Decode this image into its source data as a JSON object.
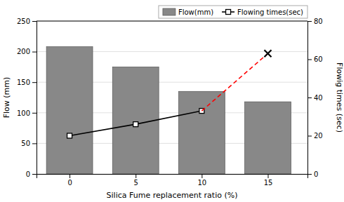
{
  "chart_data": {
    "type": "bar",
    "x": [
      0,
      5,
      10,
      15
    ],
    "xlim": [
      -2.5,
      18
    ],
    "xticks": [
      0,
      5,
      10,
      15
    ],
    "xlabel": "Silica Fume replacement ratio (%)",
    "ylabel": "Flow (mm)",
    "y2label": "Flowig times (sec)",
    "ylim": [
      0,
      250
    ],
    "yticks": [
      0,
      50,
      100,
      150,
      200,
      250
    ],
    "y2lim": [
      0,
      80
    ],
    "y2ticks": [
      0,
      20,
      40,
      60,
      80
    ],
    "grid": true,
    "legend": "upper right",
    "series": [
      {
        "name": "Flow(mm)",
        "type": "bar",
        "color": "#888888",
        "values": [
          208,
          175,
          135,
          118
        ]
      },
      {
        "name": "Flowing times(sec)",
        "type": "line",
        "axis": "y2",
        "color": "black",
        "line_style": "solid",
        "marker": "square",
        "values": [
          20,
          26,
          33,
          null
        ]
      },
      {
        "type": "line",
        "axis": "y2",
        "color": "red",
        "line_style": "dashed",
        "values": [
          null,
          null,
          33,
          63
        ]
      },
      {
        "type": "scatter",
        "axis": "y2",
        "color": "black",
        "marker": "x",
        "values": [
          null,
          null,
          null,
          63
        ]
      }
    ]
  }
}
